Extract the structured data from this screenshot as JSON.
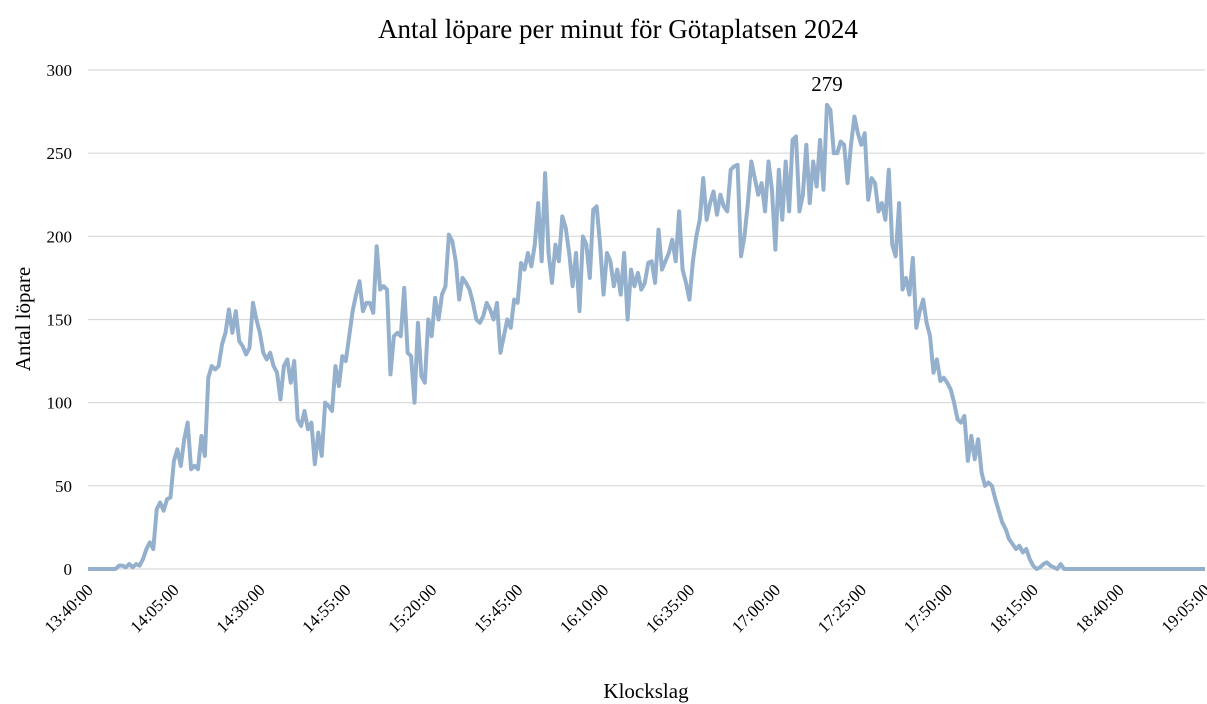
{
  "chart_data": {
    "type": "line",
    "title": "Antal löpare per minut för Götaplatsen 2024",
    "x_label": "Klockslag",
    "y_label": "Antal löpare",
    "color": "#94b0cc",
    "grid": true,
    "ylim": [
      0,
      300
    ],
    "yticks": [
      0,
      50,
      100,
      150,
      200,
      250,
      300
    ],
    "categories": [
      "13:40:00",
      null,
      null,
      null,
      null,
      null,
      null,
      null,
      null,
      null,
      null,
      null,
      null,
      null,
      null,
      null,
      null,
      null,
      null,
      null,
      null,
      null,
      null,
      null,
      null,
      "14:05:00",
      null,
      null,
      null,
      null,
      null,
      null,
      null,
      null,
      null,
      null,
      null,
      null,
      null,
      null,
      null,
      null,
      null,
      null,
      null,
      null,
      null,
      null,
      null,
      null,
      "14:30:00",
      null,
      null,
      null,
      null,
      null,
      null,
      null,
      null,
      null,
      null,
      null,
      null,
      null,
      null,
      null,
      null,
      null,
      null,
      null,
      null,
      null,
      null,
      null,
      null,
      "14:55:00",
      null,
      null,
      null,
      null,
      null,
      null,
      null,
      null,
      null,
      null,
      null,
      null,
      null,
      null,
      null,
      null,
      null,
      null,
      null,
      null,
      null,
      null,
      null,
      null,
      "15:20:00",
      null,
      null,
      null,
      null,
      null,
      null,
      null,
      null,
      null,
      null,
      null,
      null,
      null,
      null,
      null,
      null,
      null,
      null,
      null,
      null,
      null,
      null,
      null,
      null,
      "15:45:00",
      null,
      null,
      null,
      null,
      null,
      null,
      null,
      null,
      null,
      null,
      null,
      null,
      null,
      null,
      null,
      null,
      null,
      null,
      null,
      null,
      null,
      null,
      null,
      null,
      "16:10:00",
      null,
      null,
      null,
      null,
      null,
      null,
      null,
      null,
      null,
      null,
      null,
      null,
      null,
      null,
      null,
      null,
      null,
      null,
      null,
      null,
      null,
      null,
      null,
      null,
      "16:35:00",
      null,
      null,
      null,
      null,
      null,
      null,
      null,
      null,
      null,
      null,
      null,
      null,
      null,
      null,
      null,
      null,
      null,
      null,
      null,
      null,
      null,
      null,
      null,
      null,
      "17:00:00",
      null,
      null,
      null,
      null,
      null,
      null,
      null,
      null,
      null,
      null,
      null,
      null,
      null,
      null,
      null,
      null,
      null,
      null,
      null,
      null,
      null,
      null,
      null,
      null,
      "17:25:00",
      null,
      null,
      null,
      null,
      null,
      null,
      null,
      null,
      null,
      null,
      null,
      null,
      null,
      null,
      null,
      null,
      null,
      null,
      null,
      null,
      null,
      null,
      null,
      null,
      "17:50:00",
      null,
      null,
      null,
      null,
      null,
      null,
      null,
      null,
      null,
      null,
      null,
      null,
      null,
      null,
      null,
      null,
      null,
      null,
      null,
      null,
      null,
      null,
      null,
      null,
      "18:15:00",
      null,
      null,
      null,
      null,
      null,
      null,
      null,
      null,
      null,
      null,
      null,
      null,
      null,
      null,
      null,
      null,
      null,
      null,
      null,
      null,
      null,
      null,
      null,
      null,
      "18:40:00",
      null,
      null,
      null,
      null,
      null,
      null,
      null,
      null,
      null,
      null,
      null,
      null,
      null,
      null,
      null,
      null,
      null,
      null,
      null,
      null,
      null,
      null,
      null,
      null,
      "19:05:00"
    ],
    "values": [
      0,
      0,
      0,
      0,
      0,
      0,
      0,
      0,
      0,
      2,
      2,
      1,
      3,
      1,
      3,
      2,
      6,
      12,
      16,
      12,
      36,
      40,
      35,
      42,
      43,
      65,
      72,
      62,
      78,
      88,
      60,
      62,
      60,
      80,
      68,
      115,
      122,
      120,
      122,
      135,
      142,
      156,
      142,
      155,
      137,
      134,
      129,
      133,
      160,
      150,
      142,
      130,
      126,
      130,
      122,
      118,
      102,
      122,
      126,
      112,
      125,
      90,
      86,
      95,
      84,
      88,
      63,
      82,
      68,
      100,
      98,
      95,
      122,
      110,
      128,
      125,
      140,
      155,
      165,
      173,
      155,
      160,
      160,
      154,
      194,
      168,
      170,
      168,
      117,
      140,
      142,
      140,
      169,
      130,
      128,
      100,
      148,
      116,
      112,
      150,
      140,
      163,
      150,
      165,
      170,
      201,
      197,
      185,
      162,
      175,
      172,
      168,
      160,
      150,
      148,
      152,
      160,
      156,
      150,
      160,
      130,
      140,
      150,
      145,
      162,
      160,
      184,
      180,
      190,
      182,
      195,
      220,
      185,
      238,
      190,
      172,
      195,
      185,
      212,
      205,
      190,
      170,
      190,
      155,
      200,
      195,
      175,
      216,
      218,
      195,
      165,
      190,
      185,
      170,
      180,
      165,
      190,
      150,
      180,
      170,
      178,
      168,
      172,
      184,
      185,
      172,
      204,
      180,
      185,
      190,
      198,
      185,
      215,
      180,
      172,
      162,
      185,
      200,
      210,
      235,
      210,
      220,
      227,
      213,
      225,
      218,
      215,
      240,
      242,
      243,
      188,
      200,
      220,
      245,
      235,
      225,
      232,
      215,
      245,
      228,
      192,
      240,
      210,
      245,
      215,
      258,
      260,
      215,
      225,
      255,
      220,
      245,
      230,
      258,
      228,
      279,
      276,
      250,
      250,
      257,
      255,
      232,
      255,
      272,
      262,
      255,
      262,
      222,
      235,
      232,
      215,
      220,
      210,
      240,
      195,
      188,
      220,
      168,
      175,
      165,
      187,
      145,
      155,
      162,
      148,
      140,
      118,
      126,
      113,
      115,
      112,
      108,
      100,
      90,
      88,
      92,
      65,
      80,
      66,
      78,
      58,
      50,
      52,
      50,
      42,
      35,
      28,
      24,
      18,
      15,
      12,
      14,
      10,
      12,
      6,
      2,
      0,
      1,
      3,
      4,
      2,
      1,
      0,
      3,
      0,
      0,
      0,
      0,
      0,
      0,
      0,
      0,
      0,
      0,
      0,
      0,
      0,
      0,
      0,
      0,
      0,
      0,
      0,
      0,
      0,
      0,
      0,
      0,
      0,
      0,
      0,
      0,
      0,
      0,
      0,
      0,
      0,
      0,
      0,
      0,
      0,
      0,
      0,
      0,
      0,
      0
    ]
  }
}
